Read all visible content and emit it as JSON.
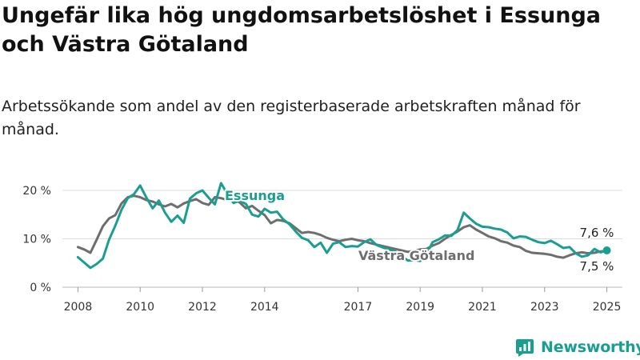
{
  "title": "Ungefär lika hög ungdomsarbetslöshet i Essunga och Västra Götaland",
  "subtitle": "Arbetssökande som andel av den registerbaserade arbetskraften månad för månad.",
  "brand": {
    "name": "Newsworthy",
    "color": "#1a9e91",
    "icon": "newsworthy-logo-icon"
  },
  "chart_data": {
    "type": "line",
    "xlim": [
      2007.5,
      2025.5
    ],
    "ylim": [
      0,
      20
    ],
    "yticks": [
      0,
      10,
      20
    ],
    "ytick_labels": [
      "0 %",
      "10 %",
      "20 %"
    ],
    "xticks": [
      2008,
      2010,
      2012,
      2014,
      2017,
      2019,
      2021,
      2023,
      2025
    ],
    "xtick_labels": [
      "2008",
      "2010",
      "2012",
      "2014",
      "2017",
      "2019",
      "2021",
      "2023",
      "2025"
    ],
    "grid": true,
    "series": [
      {
        "name": "Västra Götaland",
        "color": "#6e6e6e",
        "x": [
          2008.0,
          2008.2,
          2008.4,
          2008.6,
          2008.8,
          2009.0,
          2009.2,
          2009.4,
          2009.6,
          2009.8,
          2010.0,
          2010.2,
          2010.4,
          2010.6,
          2010.8,
          2011.0,
          2011.2,
          2011.4,
          2011.6,
          2011.8,
          2012.0,
          2012.2,
          2012.4,
          2012.6,
          2012.8,
          2013.0,
          2013.2,
          2013.4,
          2013.6,
          2013.8,
          2014.0,
          2014.2,
          2014.4,
          2014.6,
          2014.8,
          2015.0,
          2015.2,
          2015.4,
          2015.6,
          2015.8,
          2016.0,
          2016.2,
          2016.4,
          2016.6,
          2016.8,
          2017.0,
          2017.2,
          2017.4,
          2017.6,
          2017.8,
          2018.0,
          2018.2,
          2018.4,
          2018.6,
          2018.8,
          2019.0,
          2019.2,
          2019.4,
          2019.6,
          2019.8,
          2020.0,
          2020.2,
          2020.4,
          2020.6,
          2020.8,
          2021.0,
          2021.2,
          2021.4,
          2021.6,
          2021.8,
          2022.0,
          2022.2,
          2022.4,
          2022.6,
          2022.8,
          2023.0,
          2023.2,
          2023.4,
          2023.6,
          2023.8,
          2024.0,
          2024.2,
          2024.4,
          2024.6,
          2024.8,
          2025.0
        ],
        "values": [
          8.3,
          7.8,
          7.1,
          9.8,
          12.6,
          14.2,
          14.9,
          17.3,
          18.6,
          18.9,
          18.6,
          18.0,
          17.7,
          17.1,
          16.7,
          17.2,
          16.5,
          17.3,
          17.8,
          18.2,
          17.4,
          17.0,
          18.6,
          18.4,
          18.0,
          18.2,
          17.5,
          16.3,
          16.8,
          15.8,
          14.9,
          13.2,
          13.9,
          13.7,
          13.2,
          12.2,
          11.2,
          11.4,
          11.2,
          10.8,
          10.2,
          9.8,
          9.5,
          9.8,
          10.0,
          9.7,
          9.5,
          9.1,
          8.8,
          8.5,
          8.2,
          7.9,
          7.6,
          7.3,
          7.5,
          7.8,
          7.9,
          8.6,
          9.1,
          10.0,
          10.8,
          11.5,
          12.4,
          12.8,
          11.9,
          11.2,
          10.5,
          10.1,
          9.5,
          9.2,
          8.6,
          8.3,
          7.5,
          7.1,
          7.0,
          6.9,
          6.7,
          6.3,
          6.1,
          6.6,
          7.0,
          7.2,
          7.0,
          7.1,
          7.4,
          7.5
        ]
      },
      {
        "name": "Essunga",
        "color": "#1a9e91",
        "x": [
          2008.0,
          2008.2,
          2008.4,
          2008.6,
          2008.8,
          2009.0,
          2009.2,
          2009.4,
          2009.6,
          2009.8,
          2010.0,
          2010.2,
          2010.4,
          2010.6,
          2010.8,
          2011.0,
          2011.2,
          2011.4,
          2011.6,
          2011.8,
          2012.0,
          2012.2,
          2012.4,
          2012.6,
          2012.8,
          2013.0,
          2013.2,
          2013.4,
          2013.6,
          2013.8,
          2014.0,
          2014.2,
          2014.4,
          2014.6,
          2014.8,
          2015.0,
          2015.2,
          2015.4,
          2015.6,
          2015.8,
          2016.0,
          2016.2,
          2016.4,
          2016.6,
          2016.8,
          2017.0,
          2017.2,
          2017.4,
          2017.6,
          2017.8,
          2018.0,
          2018.2,
          2018.4,
          2018.6,
          2018.8,
          2019.0,
          2019.2,
          2019.4,
          2019.6,
          2019.8,
          2020.0,
          2020.2,
          2020.4,
          2020.6,
          2020.8,
          2021.0,
          2021.2,
          2021.4,
          2021.6,
          2021.8,
          2022.0,
          2022.2,
          2022.4,
          2022.6,
          2022.8,
          2023.0,
          2023.2,
          2023.4,
          2023.6,
          2023.8,
          2024.0,
          2024.2,
          2024.4,
          2024.6,
          2024.8,
          2025.0
        ],
        "values": [
          6.2,
          5.1,
          4.0,
          4.8,
          5.9,
          9.8,
          12.7,
          16.0,
          18.4,
          19.2,
          21.0,
          18.5,
          16.3,
          17.9,
          15.4,
          13.5,
          14.8,
          13.3,
          18.3,
          19.4,
          20.0,
          18.5,
          17.1,
          21.5,
          19.3,
          17.4,
          17.9,
          17.2,
          15.0,
          14.6,
          16.2,
          15.4,
          15.6,
          14.0,
          13.0,
          11.5,
          10.2,
          9.7,
          8.3,
          9.2,
          7.1,
          9.0,
          9.3,
          8.3,
          8.5,
          8.4,
          9.3,
          9.9,
          8.7,
          8.2,
          7.8,
          7.4,
          6.5,
          5.5,
          5.6,
          5.4,
          6.9,
          9.3,
          9.9,
          10.7,
          10.6,
          11.8,
          15.4,
          14.2,
          13.1,
          12.5,
          12.4,
          12.1,
          11.9,
          11.3,
          10.1,
          10.5,
          10.4,
          9.8,
          9.3,
          9.1,
          9.6,
          8.9,
          8.1,
          8.3,
          7.0,
          6.3,
          6.6,
          7.9,
          7.2,
          7.6
        ]
      }
    ],
    "annotations": {
      "essunga_label": "Essunga",
      "vgr_label": "Västra Götaland",
      "essunga_end_value": "7,6 %",
      "vgr_end_value": "7,5 %"
    }
  }
}
